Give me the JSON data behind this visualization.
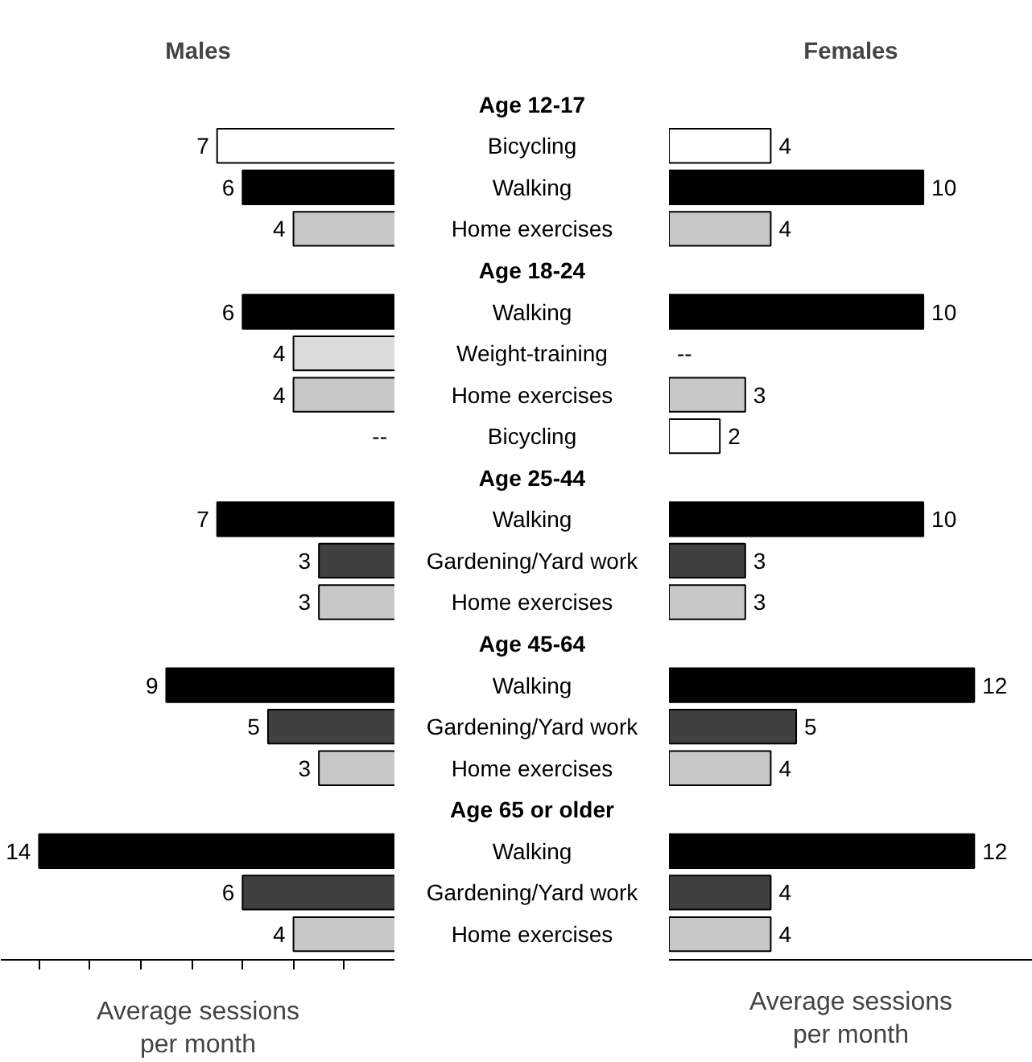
{
  "chart_data": [
    {
      "type": "bar",
      "orientation": "horizontal",
      "title": "Males",
      "xlabel": "Average sessions\nper month",
      "categories": [
        "Age 12-17",
        "Bicycling",
        "Walking",
        "Home exercises",
        "Age 18-24",
        "Walking",
        "Weight-training",
        "Home exercises",
        "Bicycling",
        "Age 25-44",
        "Walking",
        "Gardening/Yard work",
        "Home exercises",
        "Age 45-64",
        "Walking",
        "Gardening/Yard work",
        "Home exercises",
        "Age 65 or older",
        "Walking",
        "Gardening/Yard work",
        "Home exercises"
      ],
      "values": [
        null,
        7,
        6,
        4,
        null,
        6,
        4,
        4,
        null,
        null,
        7,
        3,
        3,
        null,
        9,
        5,
        3,
        null,
        14,
        6,
        4
      ],
      "value_labels": [
        null,
        "7",
        "6",
        "4",
        null,
        "6",
        "4",
        "4",
        "--",
        null,
        "7",
        "3",
        "3",
        null,
        "9",
        "5",
        "3",
        null,
        "14",
        "6",
        "4"
      ],
      "colors": [
        "#ffffff",
        "#ffffff",
        "#000000",
        "#c8c8c8",
        "#ffffff",
        "#000000",
        "#dcdcdc",
        "#c8c8c8",
        "#ffffff",
        "#ffffff",
        "#000000",
        "#404040",
        "#c8c8c8",
        "#ffffff",
        "#000000",
        "#404040",
        "#c8c8c8",
        "#ffffff",
        "#000000",
        "#404040",
        "#c8c8c8"
      ],
      "xlim": [
        15.5,
        0
      ],
      "xticks": [
        {
          "value": 0,
          "label": null
        },
        {
          "value": 2,
          "label": null
        },
        {
          "value": 4,
          "label": null
        },
        {
          "value": 6,
          "label": null
        },
        {
          "value": 8,
          "label": null
        },
        {
          "value": 10,
          "label": null
        },
        {
          "value": 12,
          "label": null
        },
        {
          "value": 14,
          "label": null
        }
      ],
      "grid": false
    },
    {
      "type": "bar",
      "orientation": "horizontal",
      "title": "Females",
      "xlabel": "Average sessions\nper month",
      "categories": [
        "Age 12-17",
        "Bicycling",
        "Walking",
        "Home exercises",
        "Age 18-24",
        "Walking",
        "Weight-training",
        "Home exercises",
        "Bicycling",
        "Age 25-44",
        "Walking",
        "Gardening/Yard work",
        "Home exercises",
        "Age 45-64",
        "Walking",
        "Gardening/Yard work",
        "Home exercises",
        "Age 65 or older",
        "Walking",
        "Gardening/Yard work",
        "Home exercises"
      ],
      "values": [
        null,
        4,
        10,
        4,
        null,
        10,
        null,
        3,
        2,
        null,
        10,
        3,
        3,
        null,
        12,
        5,
        4,
        null,
        12,
        4,
        4
      ],
      "value_labels": [
        null,
        "4",
        "10",
        "4",
        null,
        "10",
        "--",
        "3",
        "2",
        null,
        "10",
        "3",
        "3",
        null,
        "12",
        "5",
        "4",
        null,
        "12",
        "4",
        "4"
      ],
      "colors": [
        "#ffffff",
        "#ffffff",
        "#000000",
        "#c8c8c8",
        "#ffffff",
        "#000000",
        "#dcdcdc",
        "#c8c8c8",
        "#ffffff",
        "#ffffff",
        "#000000",
        "#404040",
        "#c8c8c8",
        "#ffffff",
        "#000000",
        "#404040",
        "#c8c8c8",
        "#ffffff",
        "#000000",
        "#404040",
        "#c8c8c8"
      ],
      "xlim": [
        0,
        14.3
      ],
      "tick_labels": false,
      "grid": false
    }
  ]
}
